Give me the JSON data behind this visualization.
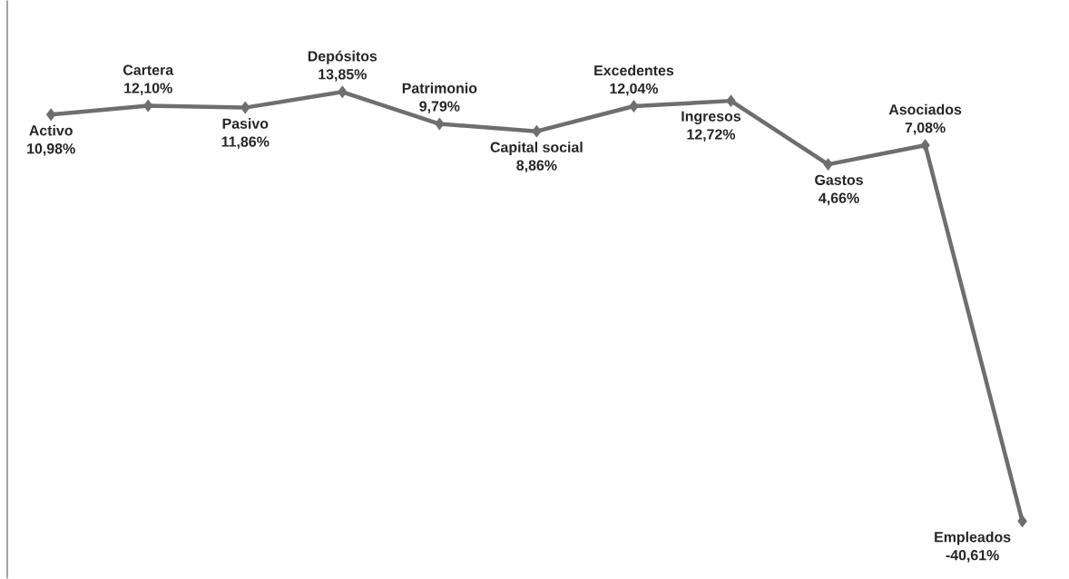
{
  "chart_data": {
    "type": "line",
    "categories": [
      null,
      null,
      null,
      null,
      null,
      null,
      null,
      null,
      null,
      null,
      null
    ],
    "values": [
      10.98,
      12.1,
      11.86,
      13.85,
      9.79,
      8.86,
      12.04,
      12.72,
      4.66,
      7.08,
      -40.61
    ],
    "value_labels": [
      "10,98%",
      "12,10%",
      "11,86%",
      "13,85%",
      "9,79%",
      "8,86%",
      "12,04%",
      "12,72%",
      "4,66%",
      "7,08%",
      "-40,61%"
    ],
    "annotations": [
      "Activo",
      "Cartera",
      "Pasivo",
      "Depósitos",
      "Patrimonio",
      "Capital social",
      "Excedentes",
      "Ingresos",
      "Gastos",
      "Asociados",
      "Empleados"
    ],
    "color": "#6e6e6e",
    "marker": "diamond",
    "line_style": "solid"
  }
}
